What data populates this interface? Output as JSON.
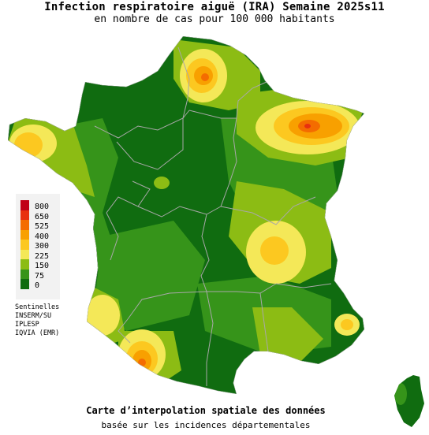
{
  "title": "Infection respiratoire aiguë (IRA) Semaine 2025s11",
  "subtitle": "en nombre de cas pour 100 000 habitants",
  "legend": {
    "levels": [
      {
        "label": "800",
        "color": "#c00018"
      },
      {
        "label": "650",
        "color": "#e83010"
      },
      {
        "label": "525",
        "color": "#f46c00"
      },
      {
        "label": "400",
        "color": "#f8a000"
      },
      {
        "label": "300",
        "color": "#fcc820"
      },
      {
        "label": "225",
        "color": "#f4e858"
      },
      {
        "label": "150",
        "color": "#8cbc14"
      },
      {
        "label": "75",
        "color": "#36941a"
      },
      {
        "label": "0",
        "color": "#106c10"
      }
    ]
  },
  "sources": {
    "heading": "Sentinelles",
    "line1": "INSERM/SU",
    "line2": "IPLESP",
    "line3": "IQVIA (EMR)"
  },
  "footer": {
    "line1": "Carte d’interpolation spatiale des données",
    "line2": "basée sur les incidences départementales"
  },
  "colors": {
    "background": "#ffffff",
    "region_border": "#a8a8a8",
    "legend_background": "#f2f2f2"
  }
}
